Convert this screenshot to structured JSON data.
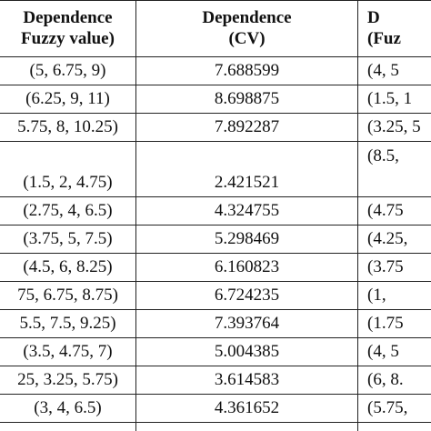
{
  "table": {
    "header": [
      [
        "Dependence",
        "Fuzzy value)"
      ],
      [
        "Dependence",
        "(CV)"
      ],
      [
        "D",
        "(Fuz"
      ]
    ],
    "rows": [
      [
        "(5, 6.75, 9)",
        "7.688599",
        "(4, 5"
      ],
      [
        "(6.25, 9, 11)",
        "8.698875",
        "(1.5, 1"
      ],
      [
        "5.75, 8, 10.25)",
        "7.892287",
        "(3.25, 5"
      ],
      [
        "(1.5, 2, 4.75)",
        "2.421521",
        "(8.5, "
      ],
      [
        "(2.75, 4, 6.5)",
        "4.324755",
        "(4.75"
      ],
      [
        "(3.75, 5, 7.5)",
        "5.298469",
        "(4.25, "
      ],
      [
        "(4.5, 6, 8.25)",
        "6.160823",
        "(3.75"
      ],
      [
        "75, 6.75, 8.75)",
        "6.724235",
        "(1, "
      ],
      [
        "5.5, 7.5, 9.25)",
        "7.393764",
        "(1.75"
      ],
      [
        "(3.5, 4.75, 7)",
        "5.004385",
        "(4, 5"
      ],
      [
        "25, 3.25, 5.75)",
        "3.614583",
        "(6, 8."
      ],
      [
        "(3, 4, 6.5)",
        "4.361652",
        "(5.75, "
      ]
    ]
  }
}
